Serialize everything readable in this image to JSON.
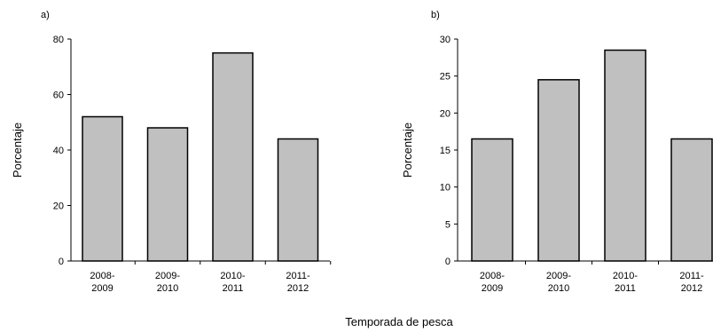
{
  "figure": {
    "shared_xlabel": "Temporada de pesca",
    "bar_fill": "#c0c0c0",
    "bar_stroke": "#000000"
  },
  "chart_data": [
    {
      "type": "bar",
      "panel_label": "a)",
      "categories": [
        [
          "2008-",
          "2009"
        ],
        [
          "2009-",
          "2010"
        ],
        [
          "2010-",
          "2011"
        ],
        [
          "2011-",
          "2012"
        ]
      ],
      "values": [
        52,
        48,
        75,
        44
      ],
      "ylabel": "Porcentaje",
      "xlabel": "Temporada de pesca",
      "ylim": [
        0,
        80
      ],
      "yticks": [
        0,
        20,
        40,
        60,
        80
      ],
      "grid": false,
      "legend": "none"
    },
    {
      "type": "bar",
      "panel_label": "b)",
      "categories": [
        [
          "2008-",
          "2009"
        ],
        [
          "2009-",
          "2010"
        ],
        [
          "2010-",
          "2011"
        ],
        [
          "2011-",
          "2012"
        ]
      ],
      "values": [
        16.5,
        24.5,
        28.5,
        16.5
      ],
      "ylabel": "Porcentaje",
      "xlabel": "Temporada de pesca",
      "ylim": [
        0,
        30
      ],
      "yticks": [
        0,
        5,
        10,
        15,
        20,
        25,
        30
      ],
      "grid": false,
      "legend": "none"
    }
  ]
}
